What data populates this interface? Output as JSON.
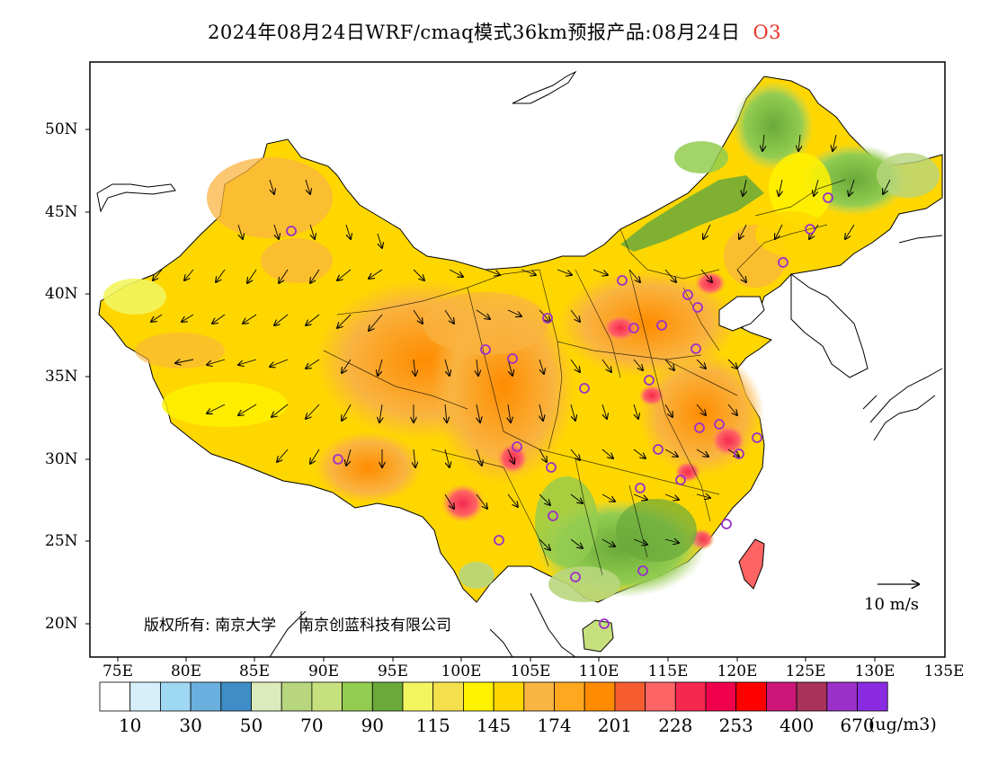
{
  "title": {
    "main": "2024年08月24日WRF/cmaq模式36km预报产品:08月24日",
    "pollutant": "O3"
  },
  "axes": {
    "y_labels": [
      "50N",
      "45N",
      "40N",
      "35N",
      "30N",
      "25N",
      "20N"
    ],
    "x_labels": [
      "75E",
      "80E",
      "85E",
      "90E",
      "95E",
      "100E",
      "105E",
      "110E",
      "115E",
      "120E",
      "125E",
      "130E",
      "135E"
    ]
  },
  "colorbar": {
    "colors": [
      "#ffffff",
      "#d6effa",
      "#9fd8f3",
      "#6ab0de",
      "#3e8dc6",
      "#dcebbb",
      "#b7d67d",
      "#c7e07e",
      "#92cc50",
      "#6aa93a",
      "#f2f55e",
      "#f4e04c",
      "#fff200",
      "#ffd700",
      "#f9b441",
      "#ffa81f",
      "#ff8c00",
      "#f55c2f",
      "#ff6464",
      "#f5284f",
      "#f0004c",
      "#ff0000",
      "#cc1677",
      "#a8325a",
      "#9b30c8",
      "#8a2be2"
    ],
    "labels": [
      "10",
      "30",
      "50",
      "70",
      "90",
      "115",
      "145",
      "174",
      "201",
      "228",
      "253",
      "400",
      "670"
    ],
    "unit": "(ug/m3)"
  },
  "wind_reference": {
    "label": "10 m/s"
  },
  "copyright": {
    "left": "版权所有: 南京大学",
    "right": "南京创蓝科技有限公司"
  }
}
